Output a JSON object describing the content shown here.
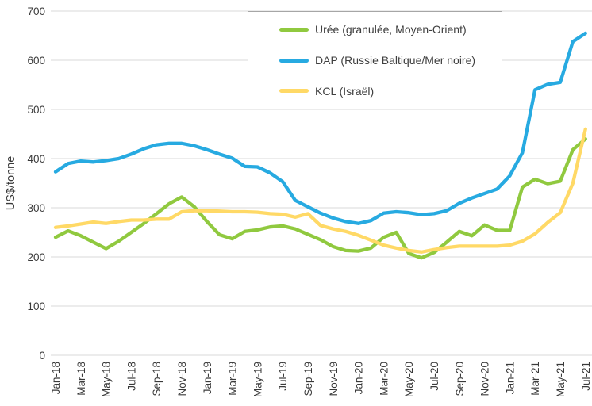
{
  "chart_data": {
    "type": "line",
    "title": "",
    "xlabel": "",
    "ylabel": "US$/tonne",
    "ylim": [
      0,
      700
    ],
    "yticks": [
      0,
      100,
      200,
      300,
      400,
      500,
      600,
      700
    ],
    "grid": "horizontal",
    "legend_position": "top-right-inside",
    "x": [
      "Jan-18",
      "Feb-18",
      "Mar-18",
      "Apr-18",
      "May-18",
      "Jun-18",
      "Jul-18",
      "Aug-18",
      "Sep-18",
      "Oct-18",
      "Nov-18",
      "Dec-18",
      "Jan-19",
      "Feb-19",
      "Mar-19",
      "Apr-19",
      "May-19",
      "Jun-19",
      "Jul-19",
      "Aug-19",
      "Sep-19",
      "Oct-19",
      "Nov-19",
      "Dec-19",
      "Jan-20",
      "Feb-20",
      "Mar-20",
      "Apr-20",
      "May-20",
      "Jun-20",
      "Jul-20",
      "Aug-20",
      "Sep-20",
      "Oct-20",
      "Nov-20",
      "Dec-20",
      "Jan-21",
      "Feb-21",
      "Mar-21",
      "Apr-21",
      "May-21",
      "Jun-21",
      "Jul-21"
    ],
    "x_tick_labels": [
      "Jan-18",
      "Mar-18",
      "May-18",
      "Jul-18",
      "Sep-18",
      "Nov-18",
      "Jan-19",
      "Mar-19",
      "May-19",
      "Jul-19",
      "Sep-19",
      "Nov-19",
      "Jan-20",
      "Mar-20",
      "May-20",
      "Jul-20",
      "Sep-20",
      "Nov-20",
      "Jan-21",
      "Mar-21",
      "May-21",
      "Jul-21"
    ],
    "series": [
      {
        "name": "Urée (granulée, Moyen-Orient)",
        "color": "#90C93F",
        "values": [
          240,
          253,
          243,
          230,
          217,
          232,
          250,
          268,
          288,
          308,
          322,
          302,
          272,
          245,
          237,
          252,
          255,
          261,
          263,
          257,
          246,
          235,
          221,
          213,
          212,
          218,
          240,
          250,
          207,
          198,
          209,
          230,
          252,
          243,
          265,
          254,
          254,
          342,
          358,
          349,
          354,
          418,
          440
        ]
      },
      {
        "name": "DAP (Russie Baltique/Mer noire)",
        "color": "#27AAE1",
        "values": [
          373,
          390,
          395,
          393,
          396,
          400,
          409,
          420,
          428,
          431,
          431,
          426,
          418,
          409,
          401,
          384,
          383,
          371,
          353,
          315,
          302,
          289,
          279,
          272,
          268,
          274,
          289,
          292,
          290,
          286,
          288,
          294,
          309,
          320,
          329,
          338,
          365,
          412,
          540,
          551,
          555,
          638,
          655
        ]
      },
      {
        "name": "KCL (Israël)",
        "color": "#FFD966",
        "values": [
          260,
          263,
          267,
          271,
          268,
          272,
          275,
          275,
          277,
          277,
          292,
          294,
          294,
          293,
          292,
          292,
          291,
          288,
          287,
          281,
          288,
          264,
          257,
          252,
          244,
          234,
          224,
          218,
          213,
          210,
          215,
          219,
          222,
          222,
          222,
          222,
          224,
          232,
          247,
          270,
          290,
          350,
          460
        ]
      }
    ],
    "colors": {
      "gridline": "#d9d9d9",
      "axis_line": "#d9d9d9",
      "tick_label": "#3a3a3a",
      "axis_title": "#3a3a3a",
      "legend_border": "#a6a6a6",
      "background": "#ffffff"
    }
  }
}
